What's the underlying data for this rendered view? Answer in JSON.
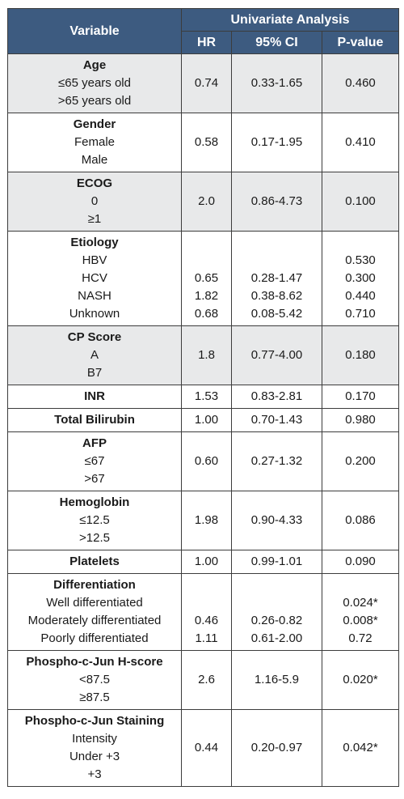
{
  "table": {
    "header": {
      "variable": "Variable",
      "group": "Univariate Analysis",
      "hr": "HR",
      "ci": "95% CI",
      "p": "P-value"
    },
    "rows": [
      {
        "variable": "Age",
        "levels": [
          "≤65 years old",
          ">65 years old"
        ],
        "hr": "0.74",
        "ci": "0.33-1.65",
        "p": "0.460",
        "shaded": true
      },
      {
        "variable": "Gender",
        "levels": [
          "Female",
          "Male"
        ],
        "hr": "0.58",
        "ci": "0.17-1.95",
        "p": "0.410"
      },
      {
        "variable": "ECOG",
        "levels": [
          "0",
          "≥1"
        ],
        "hr": "2.0",
        "ci": "0.86-4.73",
        "p": "0.100",
        "shaded": true
      },
      {
        "variable": "Etiology",
        "levels": [
          {
            "label": "HBV",
            "p": "0.530"
          },
          {
            "label": "HCV",
            "hr": "0.65",
            "ci": "0.28-1.47",
            "p": "0.300"
          },
          {
            "label": "NASH",
            "hr": "1.82",
            "ci": "0.38-8.62",
            "p": "0.440"
          },
          {
            "label": "Unknown",
            "hr": "0.68",
            "ci": "0.08-5.42",
            "p": "0.710"
          }
        ]
      },
      {
        "variable": "CP Score",
        "levels": [
          "A",
          "B7"
        ],
        "hr": "1.8",
        "ci": "0.77-4.00",
        "p": "0.180",
        "shaded": true
      },
      {
        "variable": "INR",
        "hr": "1.53",
        "ci": "0.83-2.81",
        "p": "0.170"
      },
      {
        "variable": "Total Bilirubin",
        "hr": "1.00",
        "ci": "0.70-1.43",
        "p": "0.980"
      },
      {
        "variable": "AFP",
        "levels": [
          "≤67",
          ">67"
        ],
        "hr": "0.60",
        "ci": "0.27-1.32",
        "p": "0.200"
      },
      {
        "variable": "Hemoglobin",
        "levels": [
          "≤12.5",
          ">12.5"
        ],
        "hr": "1.98",
        "ci": "0.90-4.33",
        "p": "0.086"
      },
      {
        "variable": "Platelets",
        "hr": "1.00",
        "ci": "0.99-1.01",
        "p": "0.090"
      },
      {
        "variable": "Differentiation",
        "levels": [
          {
            "label": "Well differentiated",
            "p": "0.024*"
          },
          {
            "label": "Moderately differentiated",
            "hr": "0.46",
            "ci": "0.26-0.82",
            "p": "0.008*"
          },
          {
            "label": "Poorly differentiated",
            "hr": "1.11",
            "ci": "0.61-2.00",
            "p": "0.72"
          }
        ]
      },
      {
        "variable": "Phospho-c-Jun H-score",
        "levels": [
          "<87.5",
          "≥87.5"
        ],
        "hr": "2.6",
        "ci": "1.16-5.9",
        "p": "0.020*"
      },
      {
        "variable": "Phospho-c-Jun Staining",
        "levels": [
          "Intensity",
          "Under +3",
          "+3"
        ],
        "hr": "0.44",
        "ci": "0.20-0.97",
        "p": "0.042*"
      }
    ]
  }
}
